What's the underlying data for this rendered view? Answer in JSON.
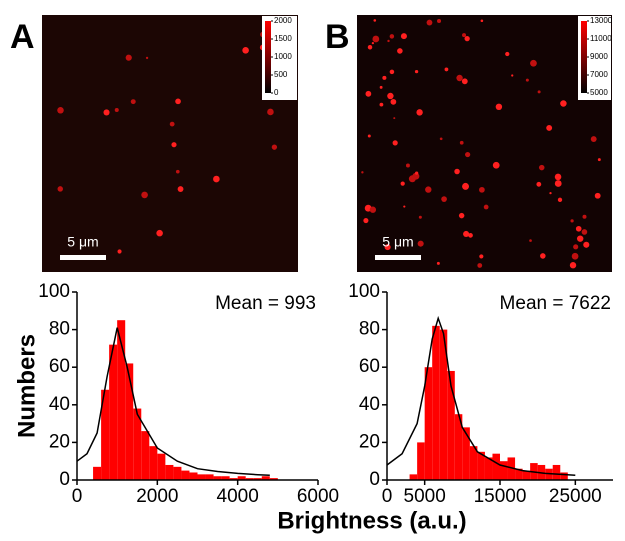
{
  "images": [
    {
      "label": "A",
      "scale_bar": "5 μm",
      "colorbar": {
        "lim": [
          0,
          2000
        ],
        "ticks": [
          0,
          500,
          1000,
          1500,
          2000
        ]
      }
    },
    {
      "label": "B",
      "scale_bar": "5 μm",
      "colorbar": {
        "lim": [
          5000,
          13000
        ],
        "ticks": [
          5000,
          7000,
          9000,
          11000,
          13000
        ]
      }
    }
  ],
  "chart_data": [
    {
      "type": "histogram",
      "ylabel": "Numbers",
      "annotation": "Mean = 993",
      "color": "#ff0000",
      "bins": [
        400,
        600,
        800,
        1000,
        1200,
        1400,
        1600,
        1800,
        2000,
        2200,
        2400,
        2600,
        2800,
        3000,
        3200,
        3400,
        3600,
        3800,
        4000,
        4200,
        4400,
        4600,
        4800,
        5000
      ],
      "values": [
        7,
        48,
        72,
        85,
        62,
        38,
        26,
        18,
        14,
        8,
        7,
        5,
        4,
        3,
        3,
        2,
        2,
        1,
        2,
        1,
        1,
        2,
        1
      ],
      "fit": {
        "color": "#000000",
        "x": [
          0,
          250,
          500,
          750,
          1000,
          1250,
          1500,
          2000,
          2500,
          3000,
          3500,
          4000,
          4500,
          4800
        ],
        "y": [
          10,
          14,
          25,
          55,
          81,
          60,
          35,
          17,
          10,
          6,
          4.5,
          3.5,
          2.8,
          2.5
        ]
      },
      "xlim": [
        0,
        6000
      ],
      "xticks": [
        0,
        2000,
        4000,
        6000
      ],
      "ylim": [
        0,
        100
      ],
      "yticks": [
        0,
        20,
        40,
        60,
        80,
        100
      ]
    },
    {
      "type": "histogram",
      "xlabel": "Brightness (a.u.)",
      "annotation": "Mean = 7622",
      "color": "#ff0000",
      "bins": [
        3000,
        4000,
        5000,
        6000,
        7000,
        8000,
        9000,
        10000,
        11000,
        12000,
        13000,
        14000,
        15000,
        16000,
        17000,
        18000,
        19000,
        20000,
        21000,
        22000,
        23000,
        24000
      ],
      "values": [
        3,
        20,
        60,
        82,
        80,
        58,
        35,
        28,
        18,
        15,
        12,
        14,
        10,
        12,
        6,
        5,
        9,
        8,
        6,
        8,
        4
      ],
      "fit": {
        "color": "#000000",
        "x": [
          0,
          2000,
          4000,
          5000,
          6000,
          6800,
          7500,
          8500,
          10000,
          12000,
          15000,
          18000,
          21000,
          25000
        ],
        "y": [
          8,
          14,
          30,
          50,
          75,
          86,
          78,
          50,
          28,
          15,
          8,
          5,
          3.5,
          2.5
        ]
      },
      "xlim": [
        0,
        30000
      ],
      "xticks": [
        0,
        5000,
        15000,
        25000
      ],
      "ylim": [
        0,
        100
      ],
      "yticks": [
        0,
        20,
        40,
        60,
        80,
        100
      ]
    }
  ]
}
